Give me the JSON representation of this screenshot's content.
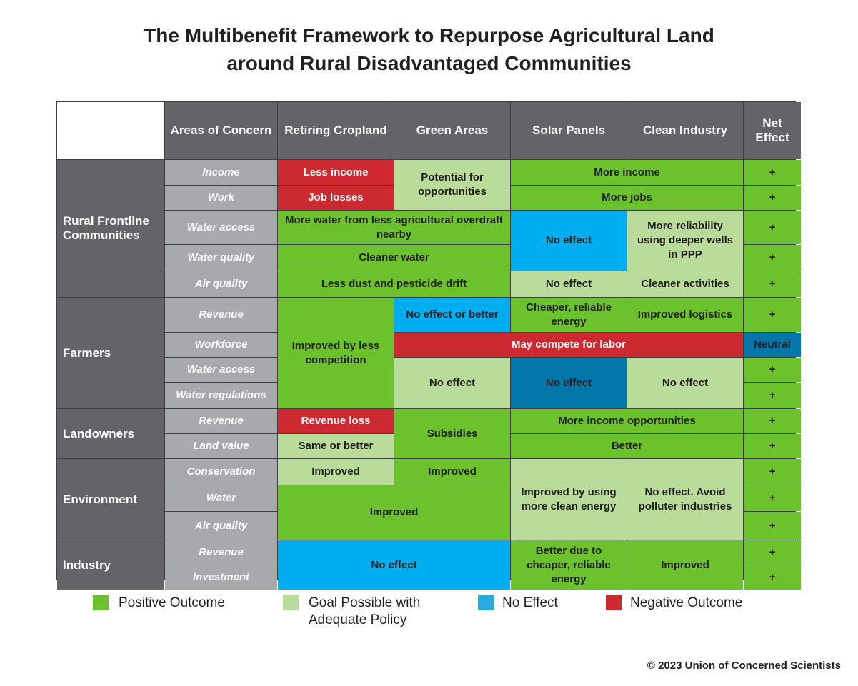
{
  "title": {
    "line1": "The Multibenefit Framework to Repurpose Agricultural Land",
    "line2": "around Rural Disadvantaged Communities"
  },
  "colors": {
    "positive": "#6cc22c",
    "goal": "#b9dc9b",
    "no_effect": "#00aeef",
    "no_effect_dark": "#0077a8",
    "negative": "#cc2a30",
    "header": "#646468",
    "subheader": "#a7a9ac"
  },
  "chart_data": {
    "type": "table",
    "columns": [
      "",
      "Areas of Concern",
      "Retiring Cropland",
      "Green Areas",
      "Solar Panels",
      "Clean Industry",
      "Net Effect"
    ],
    "groups": [
      "Rural Frontline Communities",
      "Farmers",
      "Landowners",
      "Environment",
      "Industry"
    ],
    "areas": [
      "Income",
      "Work",
      "Water access",
      "Water quality",
      "Air quality",
      "Revenue",
      "Workforce",
      "Water access",
      "Water regulations",
      "Revenue",
      "Land value",
      "Conservation",
      "Water",
      "Air quality",
      "Revenue",
      "Investment"
    ],
    "outcomes": [
      "Less income",
      "Potential for opportunities",
      "More income",
      "Job losses",
      "More jobs",
      "More water from less agricultural overdraft nearby",
      "No effect",
      "More reliability using deeper wells in PPP",
      "Cleaner water",
      "Less dust and pesticide drift",
      "No effect",
      "Cleaner activities",
      "Improved by less competition",
      "No effect or better",
      "Cheaper, reliable energy",
      "Improved logistics",
      "May compete for labor",
      "No effect",
      "No effect",
      "No effect",
      "Revenue loss",
      "Subsidies",
      "More income opportunities",
      "Same or better",
      "Better",
      "Improved",
      "Improved",
      "Improved by using more clean energy",
      "No effect. Avoid polluter industries",
      "Improved",
      "No effect",
      "Better due to cheaper, reliable energy",
      "Improved"
    ],
    "net_effect": [
      "+",
      "+",
      "+",
      "+",
      "+",
      "+",
      "Neutral",
      "+",
      "+",
      "+",
      "+",
      "+",
      "+",
      "+",
      "+",
      "+"
    ]
  },
  "legend": {
    "positive": "Positive Outcome",
    "goal_line1": "Goal Possible with",
    "goal_line2": "Adequate Policy",
    "no_effect": "No Effect",
    "negative": "Negative Outcome"
  },
  "credit": "© 2023 Union of Concerned Scientists"
}
